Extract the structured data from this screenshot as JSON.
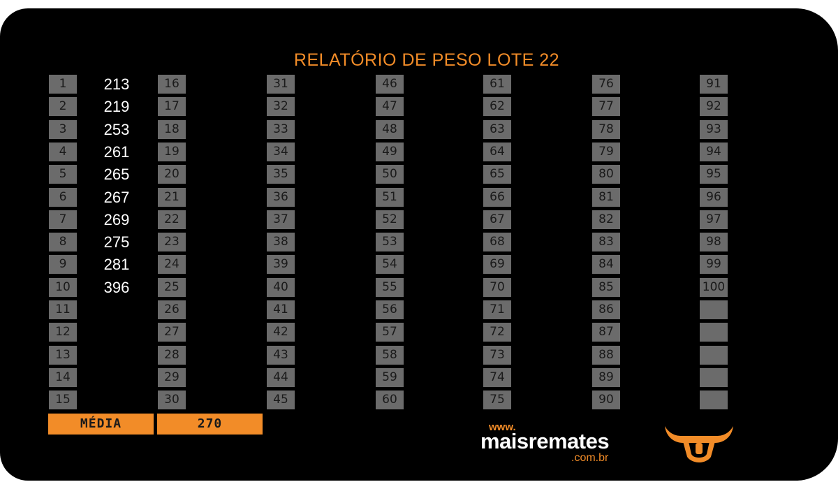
{
  "title": "RELATÓRIO DE PESO LOTE 22",
  "columns": [
    {
      "numbers": [
        "1",
        "2",
        "3",
        "4",
        "5",
        "6",
        "7",
        "8",
        "9",
        "10",
        "11",
        "12",
        "13",
        "14",
        "15"
      ],
      "weights": [
        "213",
        "219",
        "253",
        "261",
        "265",
        "267",
        "269",
        "275",
        "281",
        "396",
        "",
        "",
        "",
        "",
        ""
      ]
    },
    {
      "numbers": [
        "16",
        "17",
        "18",
        "19",
        "20",
        "21",
        "22",
        "23",
        "24",
        "25",
        "26",
        "27",
        "28",
        "29",
        "30"
      ]
    },
    {
      "numbers": [
        "31",
        "32",
        "33",
        "34",
        "35",
        "36",
        "37",
        "38",
        "39",
        "40",
        "41",
        "42",
        "43",
        "44",
        "45"
      ]
    },
    {
      "numbers": [
        "46",
        "47",
        "48",
        "49",
        "50",
        "51",
        "52",
        "53",
        "54",
        "55",
        "56",
        "57",
        "58",
        "59",
        "60"
      ]
    },
    {
      "numbers": [
        "61",
        "62",
        "63",
        "64",
        "65",
        "66",
        "67",
        "68",
        "69",
        "70",
        "71",
        "72",
        "73",
        "74",
        "75"
      ]
    },
    {
      "numbers": [
        "76",
        "77",
        "78",
        "79",
        "80",
        "81",
        "82",
        "83",
        "84",
        "85",
        "86",
        "87",
        "88",
        "89",
        "90"
      ]
    },
    {
      "numbers": [
        "91",
        "92",
        "93",
        "94",
        "95",
        "96",
        "97",
        "98",
        "99",
        "100",
        "",
        "",
        "",
        "",
        ""
      ]
    }
  ],
  "average": {
    "label": "MÉDIA",
    "value": "270"
  },
  "logo": {
    "www": "www.",
    "name": "maisremates",
    "domain": ".com.br"
  },
  "colors": {
    "accent": "#f28c28",
    "cell": "#6b6b6b",
    "background": "#000000"
  }
}
